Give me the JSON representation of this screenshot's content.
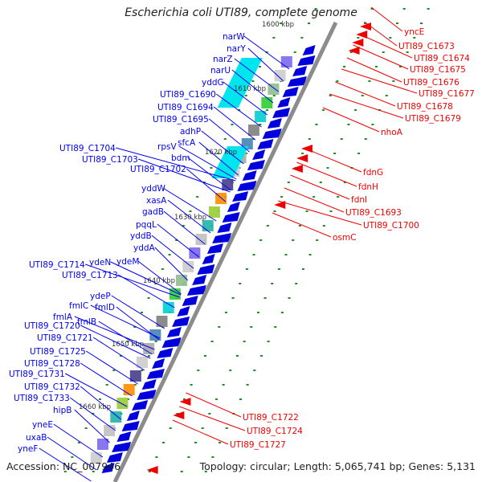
{
  "title": "Escherichia coli UTI89, complete genome",
  "footer": {
    "accession": "Accession: NC_007946",
    "topology": "Topology: circular; Length: 5,065,741 bp; Genes: 5,131"
  },
  "colors": {
    "left_label": "#0000ee",
    "right_label": "#ee0000",
    "backbone": "#8c8c8c",
    "forward_gene": "#0000dd",
    "reverse_gene": "#ee0000",
    "tick": "#228b22"
  },
  "scale_ticks": [
    "1600 kbp",
    "1610 kbp",
    "1620 kbp",
    "1630 kbp",
    "1640 kbp",
    "1650 kbp",
    "1660 kbp"
  ],
  "left_labels": [
    "narW",
    "narY",
    "narZ",
    "narU",
    "yddG",
    "UTI89_C1690",
    "UTI89_C1694",
    "UTI89_C1695",
    "adhP",
    "sfcA",
    "rpsV",
    "UTI89_C1704",
    "UTI89_C1703",
    "bdm",
    "UTI89_C1702",
    "yddW",
    "xasA",
    "gadB",
    "pqqL",
    "yddB",
    "yddA",
    "UTI89_C1714",
    "ydeN",
    "ydeM",
    "UTI89_C1713",
    "ydeP",
    "fmlC",
    "fmlD",
    "fmlA",
    "fmlB",
    "UTI89_C1720",
    "UTI89_C1721",
    "UTI89_C1725",
    "UTI89_C1728",
    "UTI89_C1731",
    "UTI89_C1732",
    "UTI89_C1733",
    "hipB",
    "yneE",
    "uxaB",
    "yneF"
  ],
  "right_labels": [
    "yncE",
    "UTI89_C1673",
    "UTI89_C1674",
    "UTI89_C1675",
    "UTI89_C1676",
    "UTI89_C1677",
    "UTI89_C1678",
    "UTI89_C1679",
    "nhoA",
    "fdnG",
    "fdnH",
    "fdnI",
    "UTI89_C1693",
    "UTI89_C1700",
    "osmC",
    "UTI89_C1722",
    "UTI89_C1724",
    "UTI89_C1727"
  ]
}
